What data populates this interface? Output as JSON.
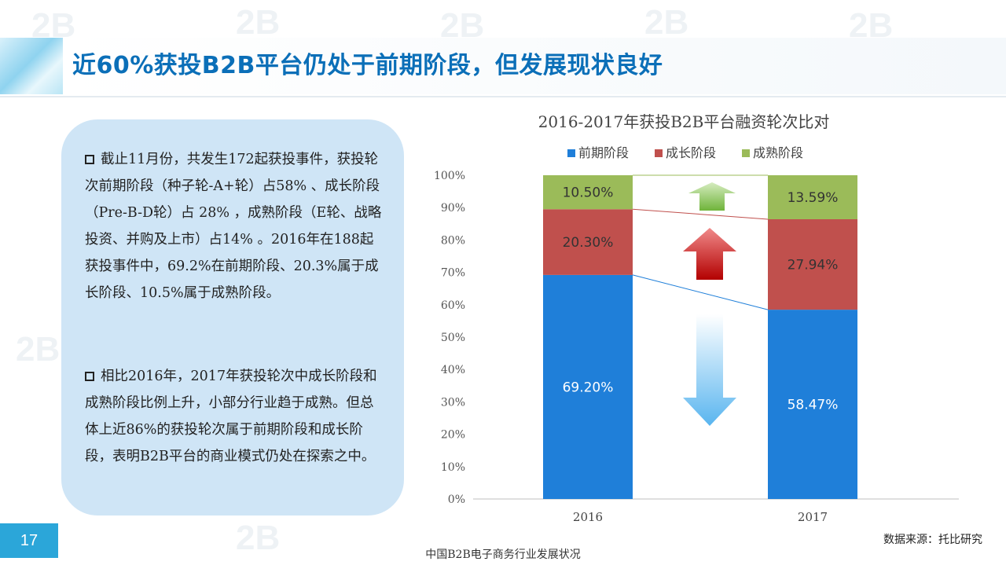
{
  "title": "近60%获投B2B平台仍处于前期阶段，但发展现状良好",
  "paragraphs": [
    "截止11月份，共发生172起获投事件，获投轮次前期阶段（种子轮-A+轮）占58% 、成长阶段（Pre-B-D轮）占 28% ，成熟阶段（E轮、战略投资、并购及上市）占14% 。2016年在188起获投事件中，69.2%在前期阶段、20.3%属于成长阶段、10.5%属于成熟阶段。",
    "相比2016年，2017年获投轮次中成长阶段和成熟阶段比例上升，小部分行业趋于成熟。但总体上近86%的获投轮次属于前期阶段和成长阶段，表明B2B平台的商业模式仍处在探索之中。"
  ],
  "page_number": "17",
  "footer": "中国B2B电子商务行业发展状况",
  "source": "数据来源：托比研究",
  "colors": {
    "early": "#1f7fd9",
    "growth": "#c0504d",
    "mature": "#9bbb59",
    "title": "#0b6fb8"
  },
  "chart_data": {
    "type": "bar",
    "stacked": true,
    "percent": true,
    "title": "2016-2017年获投B2B平台融资轮次比对",
    "categories": [
      "2016",
      "2017"
    ],
    "series": [
      {
        "name": "前期阶段",
        "values": [
          69.2,
          58.47
        ],
        "labels": [
          "69.20%",
          "58.47%"
        ]
      },
      {
        "name": "成长阶段",
        "values": [
          20.3,
          27.94
        ],
        "labels": [
          "20.30%",
          "27.94%"
        ]
      },
      {
        "name": "成熟阶段",
        "values": [
          10.5,
          13.59
        ],
        "labels": [
          "10.50%",
          "13.59%"
        ]
      }
    ],
    "yticks": [
      "0%",
      "10%",
      "20%",
      "30%",
      "40%",
      "50%",
      "60%",
      "70%",
      "80%",
      "90%",
      "100%"
    ],
    "ylim": [
      0,
      100
    ],
    "legend_position": "top",
    "grid": false
  }
}
